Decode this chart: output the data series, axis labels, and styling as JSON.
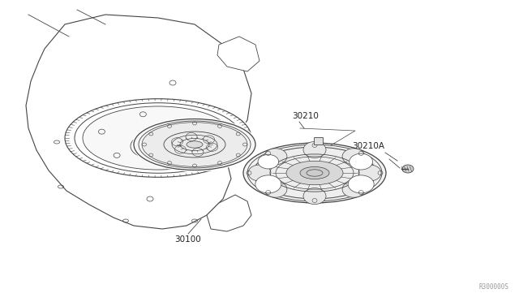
{
  "background_color": "#ffffff",
  "line_color": "#444444",
  "label_color": "#222222",
  "watermark": "R300000S",
  "fig_width": 6.4,
  "fig_height": 3.72,
  "dpi": 100
}
